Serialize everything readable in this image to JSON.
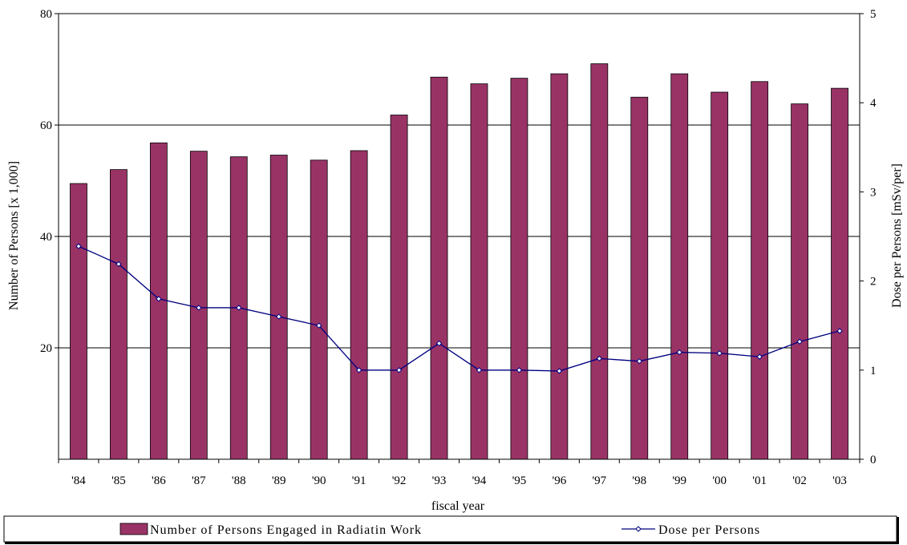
{
  "chart_data": {
    "type": "bar+line",
    "xlabel": "fiscal year",
    "ylabel_left": "Number of Persons [x 1,000]",
    "ylabel_right": "Dose per Persons [mSv/per]",
    "ylim_left": [
      0,
      80
    ],
    "ylim_right": [
      0,
      5
    ],
    "y_ticks_left": [
      "20",
      "40",
      "60",
      "80"
    ],
    "y_ticks_right": [
      "0",
      "1",
      "2",
      "3",
      "4",
      "5"
    ],
    "grid": "horizontal gridlines at 20, 40, 60, 80",
    "legend_position": "bottom",
    "categories": [
      "'84",
      "'85",
      "'86",
      "'87",
      "'88",
      "'89",
      "'90",
      "'91",
      "'92",
      "'93",
      "'94",
      "'95",
      "'96",
      "'97",
      "'98",
      "'99",
      "'00",
      "'01",
      "'02",
      "'03"
    ],
    "series": [
      {
        "name": "Number of Persons Engaged in Radiatin Work",
        "type": "bar",
        "axis": "left",
        "color": "#993366",
        "values": [
          49.5,
          52.0,
          56.8,
          55.3,
          54.3,
          54.6,
          53.7,
          55.4,
          61.8,
          68.6,
          67.4,
          68.4,
          69.2,
          71.0,
          65.0,
          69.2,
          65.9,
          67.8,
          63.8,
          66.6
        ]
      },
      {
        "name": "Dose per Persons",
        "type": "line",
        "axis": "right",
        "color": "#000080",
        "values": [
          2.39,
          2.19,
          1.8,
          1.7,
          1.7,
          1.6,
          1.5,
          1.0,
          1.0,
          1.3,
          1.0,
          1.0,
          0.99,
          1.13,
          1.1,
          1.2,
          1.19,
          1.15,
          1.32,
          1.44
        ]
      }
    ]
  }
}
